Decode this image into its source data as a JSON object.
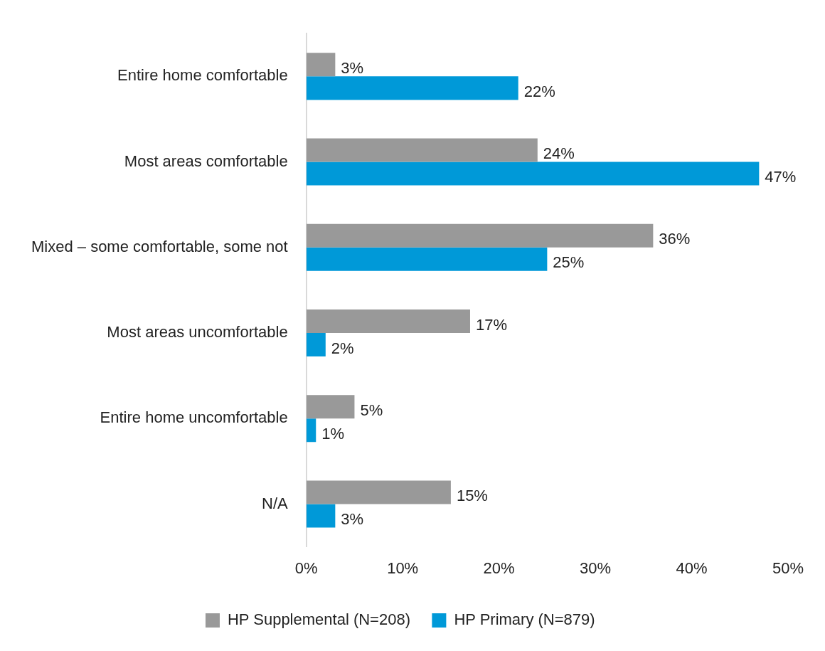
{
  "chart_data": {
    "type": "bar",
    "orientation": "horizontal",
    "categories": [
      "Entire home comfortable",
      "Most areas comfortable",
      "Mixed – some comfortable, some not",
      "Most areas uncomfortable",
      "Entire home uncomfortable",
      "N/A"
    ],
    "series": [
      {
        "name": "HP Supplemental (N=208)",
        "color": "#999999",
        "values": [
          3,
          24,
          36,
          17,
          5,
          15
        ],
        "value_labels": [
          "3%",
          "24%",
          "36%",
          "17%",
          "5%",
          "15%"
        ]
      },
      {
        "name": "HP Primary (N=879)",
        "color": "#0099d8",
        "values": [
          22,
          47,
          25,
          2,
          1,
          3
        ],
        "value_labels": [
          "22%",
          "47%",
          "25%",
          "2%",
          "1%",
          "3%"
        ]
      }
    ],
    "xlim": [
      0,
      50
    ],
    "xticks": [
      {
        "value": 0,
        "label": "0%"
      },
      {
        "value": 10,
        "label": "10%"
      },
      {
        "value": 20,
        "label": "20%"
      },
      {
        "value": 30,
        "label": "30%"
      },
      {
        "value": 40,
        "label": "40%"
      },
      {
        "value": 50,
        "label": "50%"
      }
    ],
    "legend": "bottom"
  }
}
